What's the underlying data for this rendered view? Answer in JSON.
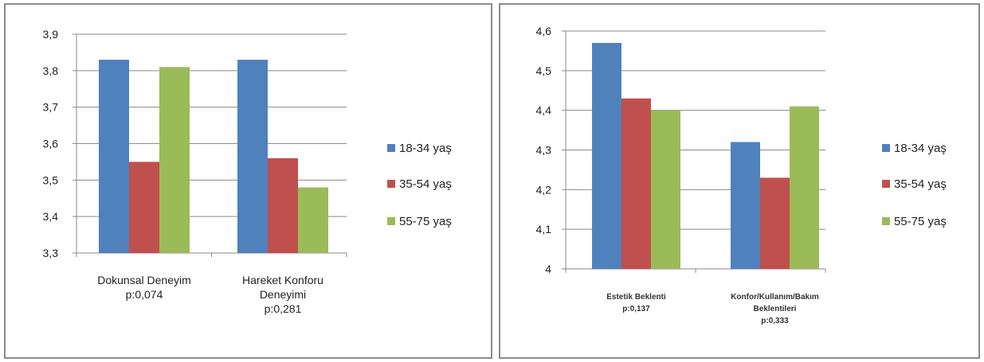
{
  "chart_data": [
    {
      "type": "bar",
      "categories": [
        [
          "Dokunsal Deneyim",
          "p:0,074"
        ],
        [
          "Hareket Konforu",
          "Deneyimi",
          "p:0,281"
        ]
      ],
      "series": [
        {
          "name": "18-34 yaş",
          "color": "#4f81bd",
          "values": [
            3.83,
            3.83
          ]
        },
        {
          "name": "35-54 yaş",
          "color": "#c0504d",
          "values": [
            3.55,
            3.56
          ]
        },
        {
          "name": "55-75 yaş",
          "color": "#9bbb59",
          "values": [
            3.81,
            3.48
          ]
        }
      ],
      "ylim": [
        3.3,
        3.9
      ],
      "yticks": [
        "3,3",
        "3,4",
        "3,5",
        "3,6",
        "3,7",
        "3,8",
        "3,9"
      ],
      "grid": true,
      "legend": "right"
    },
    {
      "type": "bar",
      "categories": [
        [
          "Estetik Beklenti",
          "p:0,137"
        ],
        [
          "Konfor/Kullanım/Bakım",
          "Beklentileri",
          "p:0,333"
        ]
      ],
      "series": [
        {
          "name": "18-34 yaş",
          "color": "#4f81bd",
          "values": [
            4.57,
            4.32
          ]
        },
        {
          "name": "35-54 yaş",
          "color": "#c0504d",
          "values": [
            4.43,
            4.23
          ]
        },
        {
          "name": "55-75 yaş",
          "color": "#9bbb59",
          "values": [
            4.4,
            4.41
          ]
        }
      ],
      "ylim": [
        4.0,
        4.6
      ],
      "yticks": [
        "4",
        "4,1",
        "4,2",
        "4,3",
        "4,4",
        "4,5",
        "4,6"
      ],
      "grid": true,
      "legend": "right"
    }
  ]
}
